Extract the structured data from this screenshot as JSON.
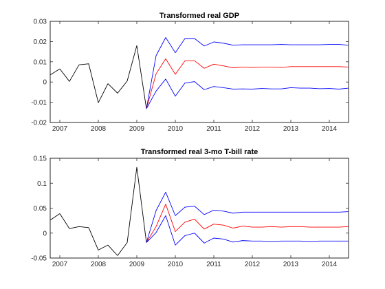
{
  "chart_data": [
    {
      "type": "line",
      "title": "Transformed real GDP",
      "xlabel": "",
      "ylabel": "",
      "xlim": [
        2006.75,
        2014.5
      ],
      "ylim": [
        -0.02,
        0.03
      ],
      "xticks": [
        2007,
        2008,
        2009,
        2010,
        2011,
        2012,
        2013,
        2014
      ],
      "xtick_labels": [
        "2007",
        "2008",
        "2009",
        "2010",
        "2011",
        "2012",
        "2013",
        "2014"
      ],
      "yticks": [
        -0.02,
        -0.01,
        0,
        0.01,
        0.02,
        0.03
      ],
      "ytick_labels": [
        "-0.02",
        "-0.01",
        "0",
        "0.01",
        "0.02",
        "0.03"
      ],
      "grid": false,
      "series": [
        {
          "color": "#000000",
          "x": [
            2006.75,
            2007.0,
            2007.25,
            2007.5,
            2007.75,
            2008.0,
            2008.25,
            2008.5,
            2008.75,
            2009.0,
            2009.25
          ],
          "y": [
            0.0035,
            0.0065,
            0.0003,
            0.0085,
            0.009,
            -0.0102,
            -0.0008,
            -0.0055,
            0.0005,
            0.018,
            -0.0132
          ]
        },
        {
          "color": "#0000ff",
          "x": [
            2009.25,
            2009.5,
            2009.75,
            2010.0,
            2010.25,
            2010.5,
            2010.75,
            2011.0,
            2011.25,
            2011.5,
            2011.75,
            2012.0,
            2012.25,
            2012.5,
            2012.75,
            2013.0,
            2013.25,
            2013.5,
            2013.75,
            2014.0,
            2014.25,
            2014.5
          ],
          "y": [
            -0.0132,
            0.013,
            0.022,
            0.0145,
            0.0215,
            0.0215,
            0.0178,
            0.0198,
            0.0192,
            0.0182,
            0.0184,
            0.0184,
            0.0184,
            0.0184,
            0.0186,
            0.0184,
            0.0184,
            0.0184,
            0.0184,
            0.0186,
            0.0186,
            0.0182
          ]
        },
        {
          "color": "#ff0000",
          "x": [
            2009.25,
            2009.5,
            2009.75,
            2010.0,
            2010.25,
            2010.5,
            2010.75,
            2011.0,
            2011.25,
            2011.5,
            2011.75,
            2012.0,
            2012.25,
            2012.5,
            2012.75,
            2013.0,
            2013.25,
            2013.5,
            2013.75,
            2014.0,
            2014.25,
            2014.5
          ],
          "y": [
            -0.0132,
            0.004,
            0.0115,
            0.0038,
            0.0105,
            0.0105,
            0.0068,
            0.0088,
            0.008,
            0.007,
            0.0074,
            0.0072,
            0.0074,
            0.0074,
            0.0072,
            0.0076,
            0.0076,
            0.0076,
            0.0076,
            0.0076,
            0.0076,
            0.0074
          ]
        },
        {
          "color": "#0000ff",
          "x": [
            2009.25,
            2009.5,
            2009.75,
            2010.0,
            2010.25,
            2010.5,
            2010.75,
            2011.0,
            2011.25,
            2011.5,
            2011.75,
            2012.0,
            2012.25,
            2012.5,
            2012.75,
            2013.0,
            2013.25,
            2013.5,
            2013.75,
            2014.0,
            2014.25,
            2014.5
          ],
          "y": [
            -0.0132,
            -0.0045,
            0.0015,
            -0.007,
            -0.0005,
            0.0002,
            -0.0038,
            -0.0022,
            -0.0028,
            -0.0035,
            -0.0034,
            -0.0035,
            -0.0032,
            -0.0034,
            -0.0034,
            -0.0028,
            -0.003,
            -0.003,
            -0.0033,
            -0.0032,
            -0.0035,
            -0.003
          ]
        }
      ]
    },
    {
      "type": "line",
      "title": "Transformed real 3-mo T-bill rate",
      "xlabel": "",
      "ylabel": "",
      "xlim": [
        2006.75,
        2014.5
      ],
      "ylim": [
        -0.05,
        0.15
      ],
      "xticks": [
        2007,
        2008,
        2009,
        2010,
        2011,
        2012,
        2013,
        2014
      ],
      "xtick_labels": [
        "2007",
        "2008",
        "2009",
        "2010",
        "2011",
        "2012",
        "2013",
        "2014"
      ],
      "yticks": [
        -0.05,
        0,
        0.05,
        0.1,
        0.15
      ],
      "ytick_labels": [
        "-0.05",
        "0",
        "0.05",
        "0.1",
        "0.15"
      ],
      "grid": false,
      "series": [
        {
          "color": "#000000",
          "x": [
            2006.75,
            2007.0,
            2007.25,
            2007.5,
            2007.75,
            2008.0,
            2008.25,
            2008.5,
            2008.75,
            2009.0,
            2009.25
          ],
          "y": [
            0.026,
            0.039,
            0.009,
            0.013,
            0.011,
            -0.034,
            -0.024,
            -0.045,
            -0.019,
            0.132,
            -0.019
          ]
        },
        {
          "color": "#0000ff",
          "x": [
            2009.25,
            2009.5,
            2009.75,
            2010.0,
            2010.25,
            2010.5,
            2010.75,
            2011.0,
            2011.25,
            2011.5,
            2011.75,
            2012.0,
            2012.25,
            2012.5,
            2012.75,
            2013.0,
            2013.25,
            2013.5,
            2013.75,
            2014.0,
            2014.25,
            2014.5
          ],
          "y": [
            -0.019,
            0.045,
            0.082,
            0.035,
            0.052,
            0.054,
            0.037,
            0.046,
            0.044,
            0.04,
            0.042,
            0.042,
            0.042,
            0.042,
            0.042,
            0.042,
            0.042,
            0.042,
            0.042,
            0.042,
            0.042,
            0.043
          ]
        },
        {
          "color": "#ff0000",
          "x": [
            2009.25,
            2009.5,
            2009.75,
            2010.0,
            2010.25,
            2010.5,
            2010.75,
            2011.0,
            2011.25,
            2011.5,
            2011.75,
            2012.0,
            2012.25,
            2012.5,
            2012.75,
            2013.0,
            2013.25,
            2013.5,
            2013.75,
            2014.0,
            2014.25,
            2014.5
          ],
          "y": [
            -0.019,
            0.013,
            0.058,
            0.003,
            0.022,
            0.028,
            0.008,
            0.018,
            0.016,
            0.01,
            0.014,
            0.012,
            0.012,
            0.013,
            0.012,
            0.013,
            0.013,
            0.012,
            0.012,
            0.012,
            0.012,
            0.013
          ]
        },
        {
          "color": "#0000ff",
          "x": [
            2009.25,
            2009.5,
            2009.75,
            2010.0,
            2010.25,
            2010.5,
            2010.75,
            2011.0,
            2011.25,
            2011.5,
            2011.75,
            2012.0,
            2012.25,
            2012.5,
            2012.75,
            2013.0,
            2013.25,
            2013.5,
            2013.75,
            2014.0,
            2014.25,
            2014.5
          ],
          "y": [
            -0.019,
            0.001,
            0.035,
            -0.024,
            -0.005,
            0.0,
            -0.02,
            -0.01,
            -0.012,
            -0.018,
            -0.015,
            -0.016,
            -0.016,
            -0.017,
            -0.016,
            -0.016,
            -0.016,
            -0.017,
            -0.016,
            -0.016,
            -0.016,
            -0.016
          ]
        }
      ]
    }
  ]
}
